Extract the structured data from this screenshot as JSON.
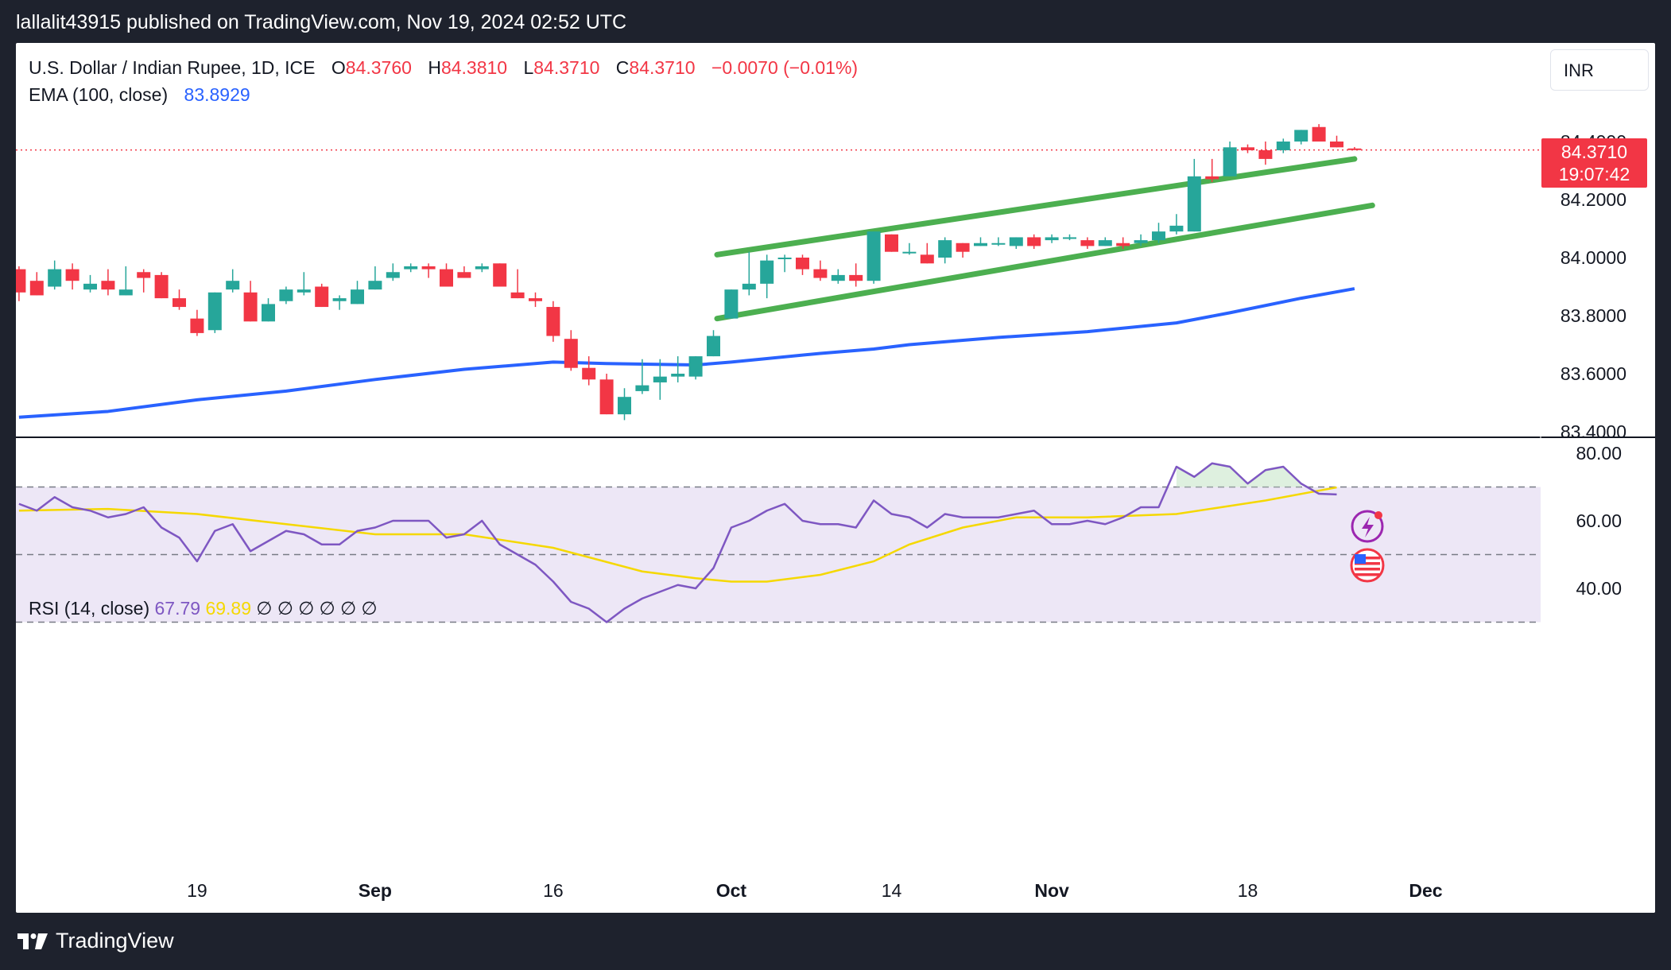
{
  "header": {
    "published_text": "lallalit43915 published on TradingView.com, Nov 19, 2024 02:52 UTC"
  },
  "footer": {
    "brand": "TradingView"
  },
  "legend": {
    "symbol": "U.S. Dollar / Indian Rupee, 1D, ICE",
    "open_label": "O",
    "open": "84.3760",
    "high_label": "H",
    "high": "84.3810",
    "low_label": "L",
    "low": "84.3710",
    "close_label": "C",
    "close": "84.3710",
    "change": "−0.0070 (−0.01%)",
    "ema_label": "EMA (100, close)",
    "ema_value": "83.8929",
    "rsi_label": "RSI (14, close)",
    "rsi_value": "67.79",
    "rsi_ma_value": "69.89",
    "rsi_na": "∅ ∅ ∅ ∅ ∅ ∅"
  },
  "currency": "INR",
  "last_price_tag": {
    "price": "84.3710",
    "countdown": "19:07:42"
  },
  "colors": {
    "up": "#26a69a",
    "down": "#f23645",
    "ema": "#2962ff",
    "channel": "#4caf50",
    "rsi": "#7e57c2",
    "rsi_ma": "#f5d800",
    "rsi_band": "#ede7f6"
  },
  "chart_data": [
    {
      "type": "candlestick",
      "title": "U.S. Dollar / Indian Rupee, 1D, ICE",
      "ylim": [
        83.4,
        84.6
      ],
      "y_ticks": [
        "84.4000",
        "84.2000",
        "84.0000",
        "83.8000",
        "83.6000",
        "83.4000"
      ],
      "x_tick_labels": [
        "19",
        "Sep",
        "16",
        "Oct",
        "14",
        "Nov",
        "18",
        "Dec"
      ],
      "x_tick_index": [
        10,
        20,
        30,
        40,
        49,
        58,
        69,
        79
      ],
      "candles": [
        {
          "o": 83.96,
          "h": 83.97,
          "l": 83.85,
          "c": 83.88
        },
        {
          "o": 83.92,
          "h": 83.95,
          "l": 83.87,
          "c": 83.87
        },
        {
          "o": 83.9,
          "h": 83.99,
          "l": 83.89,
          "c": 83.96
        },
        {
          "o": 83.96,
          "h": 83.98,
          "l": 83.89,
          "c": 83.92
        },
        {
          "o": 83.89,
          "h": 83.94,
          "l": 83.88,
          "c": 83.91
        },
        {
          "o": 83.92,
          "h": 83.96,
          "l": 83.87,
          "c": 83.89
        },
        {
          "o": 83.87,
          "h": 83.97,
          "l": 83.87,
          "c": 83.89
        },
        {
          "o": 83.95,
          "h": 83.96,
          "l": 83.88,
          "c": 83.93
        },
        {
          "o": 83.94,
          "h": 83.95,
          "l": 83.86,
          "c": 83.86
        },
        {
          "o": 83.86,
          "h": 83.89,
          "l": 83.82,
          "c": 83.83
        },
        {
          "o": 83.79,
          "h": 83.82,
          "l": 83.73,
          "c": 83.74
        },
        {
          "o": 83.75,
          "h": 83.88,
          "l": 83.74,
          "c": 83.88
        },
        {
          "o": 83.89,
          "h": 83.96,
          "l": 83.88,
          "c": 83.92
        },
        {
          "o": 83.88,
          "h": 83.92,
          "l": 83.78,
          "c": 83.78
        },
        {
          "o": 83.78,
          "h": 83.86,
          "l": 83.78,
          "c": 83.84
        },
        {
          "o": 83.85,
          "h": 83.9,
          "l": 83.84,
          "c": 83.89
        },
        {
          "o": 83.88,
          "h": 83.95,
          "l": 83.87,
          "c": 83.89
        },
        {
          "o": 83.9,
          "h": 83.91,
          "l": 83.83,
          "c": 83.83
        },
        {
          "o": 83.85,
          "h": 83.87,
          "l": 83.82,
          "c": 83.86
        },
        {
          "o": 83.84,
          "h": 83.92,
          "l": 83.84,
          "c": 83.89
        },
        {
          "o": 83.89,
          "h": 83.97,
          "l": 83.89,
          "c": 83.92
        },
        {
          "o": 83.93,
          "h": 83.98,
          "l": 83.92,
          "c": 83.95
        },
        {
          "o": 83.96,
          "h": 83.98,
          "l": 83.95,
          "c": 83.97
        },
        {
          "o": 83.97,
          "h": 83.98,
          "l": 83.93,
          "c": 83.96
        },
        {
          "o": 83.96,
          "h": 83.98,
          "l": 83.9,
          "c": 83.9
        },
        {
          "o": 83.95,
          "h": 83.97,
          "l": 83.93,
          "c": 83.93
        },
        {
          "o": 83.96,
          "h": 83.98,
          "l": 83.95,
          "c": 83.97
        },
        {
          "o": 83.98,
          "h": 83.98,
          "l": 83.9,
          "c": 83.9
        },
        {
          "o": 83.88,
          "h": 83.96,
          "l": 83.86,
          "c": 83.86
        },
        {
          "o": 83.86,
          "h": 83.88,
          "l": 83.83,
          "c": 83.85
        },
        {
          "o": 83.83,
          "h": 83.85,
          "l": 83.71,
          "c": 83.73
        },
        {
          "o": 83.72,
          "h": 83.75,
          "l": 83.61,
          "c": 83.62
        },
        {
          "o": 83.62,
          "h": 83.66,
          "l": 83.56,
          "c": 83.58
        },
        {
          "o": 83.58,
          "h": 83.6,
          "l": 83.46,
          "c": 83.46
        },
        {
          "o": 83.46,
          "h": 83.55,
          "l": 83.44,
          "c": 83.52
        },
        {
          "o": 83.54,
          "h": 83.65,
          "l": 83.53,
          "c": 83.56
        },
        {
          "o": 83.57,
          "h": 83.65,
          "l": 83.51,
          "c": 83.59
        },
        {
          "o": 83.59,
          "h": 83.66,
          "l": 83.57,
          "c": 83.6
        },
        {
          "o": 83.59,
          "h": 83.66,
          "l": 83.58,
          "c": 83.66
        },
        {
          "o": 83.66,
          "h": 83.75,
          "l": 83.66,
          "c": 83.73
        },
        {
          "o": 83.79,
          "h": 83.89,
          "l": 83.79,
          "c": 83.89
        },
        {
          "o": 83.89,
          "h": 84.02,
          "l": 83.87,
          "c": 83.91
        },
        {
          "o": 83.91,
          "h": 84.01,
          "l": 83.86,
          "c": 83.99
        },
        {
          "o": 84.0,
          "h": 84.01,
          "l": 83.95,
          "c": 84.0
        },
        {
          "o": 84.0,
          "h": 84.01,
          "l": 83.94,
          "c": 83.96
        },
        {
          "o": 83.96,
          "h": 83.99,
          "l": 83.92,
          "c": 83.93
        },
        {
          "o": 83.92,
          "h": 83.96,
          "l": 83.91,
          "c": 83.94
        },
        {
          "o": 83.94,
          "h": 83.98,
          "l": 83.9,
          "c": 83.92
        },
        {
          "o": 83.92,
          "h": 84.09,
          "l": 83.91,
          "c": 84.09
        },
        {
          "o": 84.08,
          "h": 84.08,
          "l": 84.02,
          "c": 84.02
        },
        {
          "o": 84.02,
          "h": 84.05,
          "l": 84.01,
          "c": 84.02
        },
        {
          "o": 84.01,
          "h": 84.05,
          "l": 83.98,
          "c": 83.98
        },
        {
          "o": 84.0,
          "h": 84.07,
          "l": 83.98,
          "c": 84.06
        },
        {
          "o": 84.05,
          "h": 84.05,
          "l": 84.0,
          "c": 84.02
        },
        {
          "o": 84.04,
          "h": 84.07,
          "l": 84.04,
          "c": 84.05
        },
        {
          "o": 84.05,
          "h": 84.07,
          "l": 84.04,
          "c": 84.05
        },
        {
          "o": 84.04,
          "h": 84.07,
          "l": 84.03,
          "c": 84.07
        },
        {
          "o": 84.07,
          "h": 84.08,
          "l": 84.03,
          "c": 84.04
        },
        {
          "o": 84.06,
          "h": 84.08,
          "l": 84.05,
          "c": 84.07
        },
        {
          "o": 84.07,
          "h": 84.08,
          "l": 84.06,
          "c": 84.07
        },
        {
          "o": 84.06,
          "h": 84.07,
          "l": 84.03,
          "c": 84.04
        },
        {
          "o": 84.04,
          "h": 84.07,
          "l": 84.04,
          "c": 84.06
        },
        {
          "o": 84.05,
          "h": 84.07,
          "l": 84.03,
          "c": 84.04
        },
        {
          "o": 84.05,
          "h": 84.08,
          "l": 84.04,
          "c": 84.06
        },
        {
          "o": 84.06,
          "h": 84.12,
          "l": 84.05,
          "c": 84.09
        },
        {
          "o": 84.09,
          "h": 84.15,
          "l": 84.08,
          "c": 84.11
        },
        {
          "o": 84.09,
          "h": 84.34,
          "l": 84.09,
          "c": 84.28
        },
        {
          "o": 84.28,
          "h": 84.34,
          "l": 84.26,
          "c": 84.27
        },
        {
          "o": 84.28,
          "h": 84.4,
          "l": 84.28,
          "c": 84.38
        },
        {
          "o": 84.38,
          "h": 84.39,
          "l": 84.36,
          "c": 84.37
        },
        {
          "o": 84.37,
          "h": 84.4,
          "l": 84.32,
          "c": 84.34
        },
        {
          "o": 84.37,
          "h": 84.41,
          "l": 84.36,
          "c": 84.4
        },
        {
          "o": 84.4,
          "h": 84.44,
          "l": 84.39,
          "c": 84.44
        },
        {
          "o": 84.45,
          "h": 84.46,
          "l": 84.4,
          "c": 84.4
        },
        {
          "o": 84.4,
          "h": 84.42,
          "l": 84.38,
          "c": 84.38
        },
        {
          "o": 84.376,
          "h": 84.381,
          "l": 84.371,
          "c": 84.371
        }
      ],
      "ema": [
        [
          0,
          83.45
        ],
        [
          5,
          83.47
        ],
        [
          10,
          83.51
        ],
        [
          15,
          83.54
        ],
        [
          20,
          83.58
        ],
        [
          25,
          83.615
        ],
        [
          30,
          83.64
        ],
        [
          33,
          83.635
        ],
        [
          38,
          83.63
        ],
        [
          40,
          83.64
        ],
        [
          45,
          83.67
        ],
        [
          48,
          83.685
        ],
        [
          50,
          83.7
        ],
        [
          55,
          83.725
        ],
        [
          60,
          83.745
        ],
        [
          65,
          83.775
        ],
        [
          68,
          83.81
        ],
        [
          72,
          83.86
        ],
        [
          75,
          83.893
        ]
      ],
      "channel_upper": [
        [
          39.2,
          84.01
        ],
        [
          75,
          84.34
        ]
      ],
      "channel_lower": [
        [
          39.2,
          83.79
        ],
        [
          76,
          84.18
        ]
      ],
      "last_price": 84.371
    },
    {
      "type": "line",
      "title": "RSI (14, close)",
      "ylim": [
        25,
        85
      ],
      "y_ticks": [
        "80.00",
        "60.00",
        "40.00"
      ],
      "bands": {
        "upper": 70,
        "middle": 50,
        "lower": 30
      },
      "rsi": [
        [
          0,
          65
        ],
        [
          1,
          63
        ],
        [
          2,
          67
        ],
        [
          3,
          64
        ],
        [
          4,
          63
        ],
        [
          5,
          61
        ],
        [
          6,
          62
        ],
        [
          7,
          64
        ],
        [
          8,
          58
        ],
        [
          9,
          55
        ],
        [
          10,
          48
        ],
        [
          11,
          57
        ],
        [
          12,
          59
        ],
        [
          13,
          51
        ],
        [
          14,
          54
        ],
        [
          15,
          57
        ],
        [
          16,
          56
        ],
        [
          17,
          53
        ],
        [
          18,
          53
        ],
        [
          19,
          57
        ],
        [
          20,
          58
        ],
        [
          21,
          60
        ],
        [
          22,
          60
        ],
        [
          23,
          60
        ],
        [
          24,
          55
        ],
        [
          25,
          56
        ],
        [
          26,
          60
        ],
        [
          27,
          53
        ],
        [
          28,
          50
        ],
        [
          29,
          47
        ],
        [
          30,
          42
        ],
        [
          31,
          36
        ],
        [
          32,
          34
        ],
        [
          33,
          30
        ],
        [
          34,
          34
        ],
        [
          35,
          37
        ],
        [
          36,
          39
        ],
        [
          37,
          41
        ],
        [
          38,
          40
        ],
        [
          39,
          46
        ],
        [
          40,
          58
        ],
        [
          41,
          60
        ],
        [
          42,
          63
        ],
        [
          43,
          65
        ],
        [
          44,
          60
        ],
        [
          45,
          59
        ],
        [
          46,
          59
        ],
        [
          47,
          58
        ],
        [
          48,
          66
        ],
        [
          49,
          62
        ],
        [
          50,
          61
        ],
        [
          51,
          58
        ],
        [
          52,
          62
        ],
        [
          53,
          61
        ],
        [
          54,
          61
        ],
        [
          55,
          61
        ],
        [
          56,
          62
        ],
        [
          57,
          63
        ],
        [
          58,
          59
        ],
        [
          59,
          59
        ],
        [
          60,
          60
        ],
        [
          61,
          59
        ],
        [
          62,
          61
        ],
        [
          63,
          64
        ],
        [
          64,
          64
        ],
        [
          65,
          76
        ],
        [
          66,
          73
        ],
        [
          67,
          77
        ],
        [
          68,
          76
        ],
        [
          69,
          71
        ],
        [
          70,
          75
        ],
        [
          71,
          76
        ],
        [
          72,
          71
        ],
        [
          73,
          68
        ],
        [
          74,
          67.79
        ]
      ],
      "rsi_ma": [
        [
          0,
          63
        ],
        [
          5,
          63.5
        ],
        [
          10,
          62
        ],
        [
          15,
          59
        ],
        [
          20,
          56
        ],
        [
          25,
          56
        ],
        [
          30,
          52
        ],
        [
          35,
          45
        ],
        [
          38,
          43
        ],
        [
          40,
          42
        ],
        [
          42,
          42
        ],
        [
          45,
          44
        ],
        [
          48,
          48
        ],
        [
          50,
          53
        ],
        [
          53,
          58
        ],
        [
          56,
          61
        ],
        [
          60,
          61
        ],
        [
          65,
          62
        ],
        [
          70,
          66
        ],
        [
          74,
          69.89
        ]
      ]
    }
  ]
}
